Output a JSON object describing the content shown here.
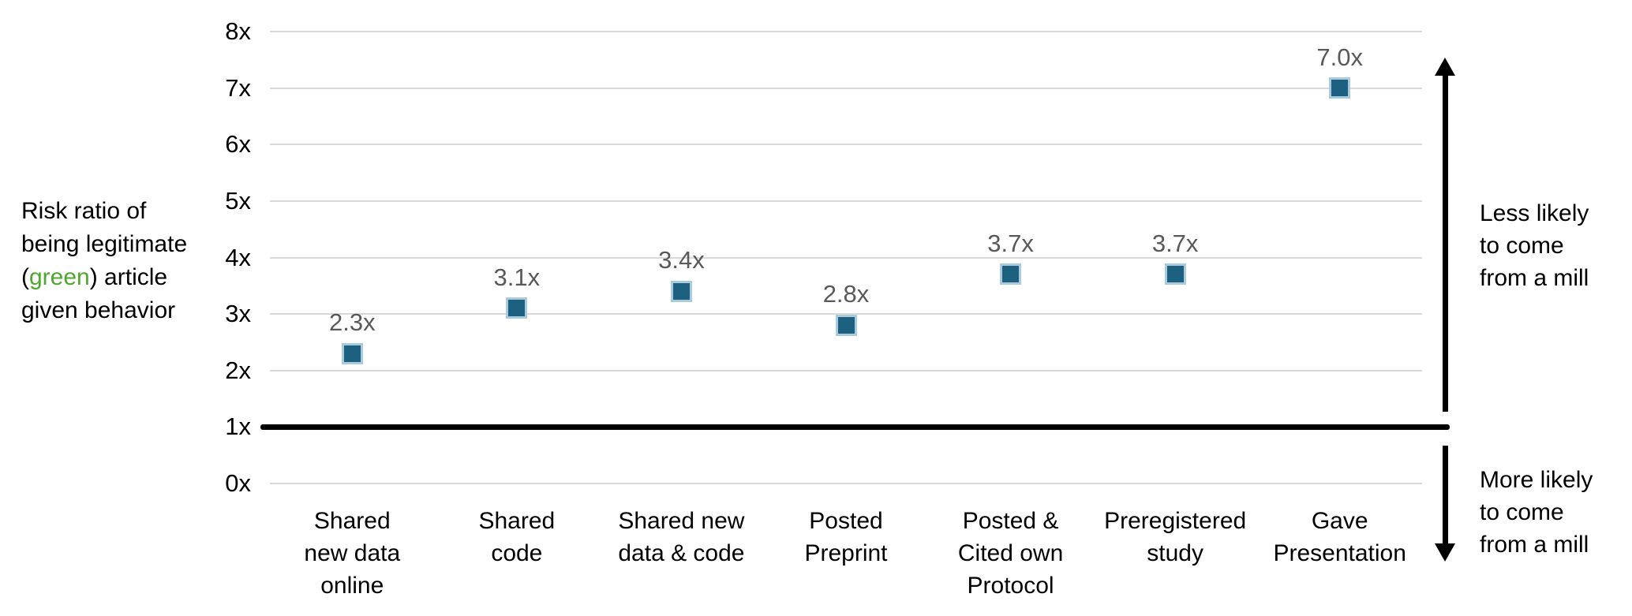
{
  "chart_data": {
    "type": "scatter",
    "title": "",
    "xlabel": "",
    "ylabel": "Risk ratio of being legitimate (green) article given behavior",
    "ylim": [
      0,
      8
    ],
    "grid": true,
    "legend": "none",
    "marker_shape": "square",
    "marker_color": "#1C6180",
    "marker_border_color": "#A9CBDC",
    "gridline_color": "#D9D9D9",
    "data_label_color": "#595959",
    "baseline_value": 1,
    "y_axis": {
      "min": 0,
      "max": 8,
      "step": 1,
      "ticks": [
        "0x",
        "1x",
        "2x",
        "3x",
        "4x",
        "5x",
        "6x",
        "7x",
        "8x"
      ]
    },
    "categories": [
      "Shared new data online",
      "Shared code",
      "Shared new data & code",
      "Posted Preprint",
      "Posted & Cited own Protocol",
      "Preregistered study",
      "Gave Presentation"
    ],
    "points": [
      {
        "name": "Shared new data online",
        "display": "Shared\nnew data\nonline",
        "value": 2.3,
        "label": "2.3x"
      },
      {
        "name": "Shared code",
        "display": "Shared\ncode",
        "value": 3.1,
        "label": "3.1x"
      },
      {
        "name": "Shared new data & code",
        "display": "Shared new\ndata & code",
        "value": 3.4,
        "label": "3.4x"
      },
      {
        "name": "Posted Preprint",
        "display": "Posted\nPreprint",
        "value": 2.8,
        "label": "2.8x"
      },
      {
        "name": "Posted & Cited own Protocol",
        "display": "Posted &\nCited own\nProtocol",
        "value": 3.7,
        "label": "3.7x"
      },
      {
        "name": "Preregistered study",
        "display": "Preregistered\nstudy",
        "value": 3.7,
        "label": "3.7x"
      },
      {
        "name": "Gave Presentation",
        "display": "Gave\nPresentation",
        "value": 7.0,
        "label": "7.0x"
      }
    ]
  },
  "left_annotation": {
    "pre": "Risk ratio of\nbeing legitimate\n(",
    "highlight": "green",
    "post": ") article\ngiven behavior",
    "highlight_color": "#4EA72E"
  },
  "right_annotations": {
    "top": "Less likely\nto come\nfrom a mill",
    "bottom": "More likely\nto come\nfrom a mill"
  }
}
